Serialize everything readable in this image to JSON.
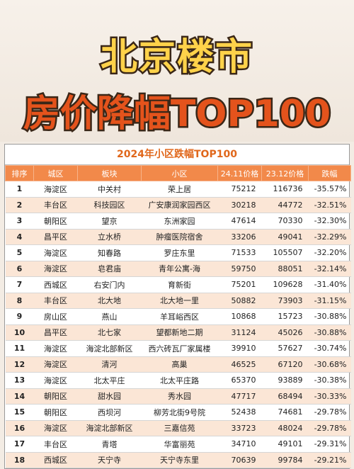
{
  "hero": {
    "title_line1": "北京楼市",
    "title_line2": "房价降幅TOP100"
  },
  "table": {
    "caption": "2024年小区跌幅TOP100",
    "headers": [
      "排序",
      "城区",
      "板块",
      "小区",
      "24.11价格",
      "23.12价格",
      "跌幅"
    ],
    "rows": [
      [
        "1",
        "海淀区",
        "中关村",
        "荣上居",
        "75212",
        "116736",
        "-35.57%"
      ],
      [
        "2",
        "丰台区",
        "科技园区",
        "广安康润家园西区",
        "30218",
        "44772",
        "-32.51%"
      ],
      [
        "3",
        "朝阳区",
        "望京",
        "东洲家园",
        "47614",
        "70330",
        "-32.30%"
      ],
      [
        "4",
        "昌平区",
        "立水桥",
        "肿瘤医院宿舍",
        "33206",
        "49041",
        "-32.29%"
      ],
      [
        "5",
        "海淀区",
        "知春路",
        "罗庄东里",
        "71533",
        "105507",
        "-32.20%"
      ],
      [
        "6",
        "海淀区",
        "皂君庙",
        "青年公寓-海",
        "59750",
        "88051",
        "-32.14%"
      ],
      [
        "7",
        "西城区",
        "右安门内",
        "育新街",
        "75201",
        "109628",
        "-31.40%"
      ],
      [
        "8",
        "丰台区",
        "北大地",
        "北大地一里",
        "50882",
        "73903",
        "-31.15%"
      ],
      [
        "9",
        "房山区",
        "燕山",
        "羊耳峪西区",
        "10868",
        "15723",
        "-30.88%"
      ],
      [
        "10",
        "昌平区",
        "北七家",
        "望都新地二期",
        "31124",
        "45026",
        "-30.88%"
      ],
      [
        "11",
        "海淀区",
        "海淀北部新区",
        "西六砖瓦厂家属楼",
        "39910",
        "57627",
        "-30.74%"
      ],
      [
        "12",
        "海淀区",
        "清河",
        "高巢",
        "46525",
        "67120",
        "-30.68%"
      ],
      [
        "13",
        "海淀区",
        "北太平庄",
        "北太平庄路",
        "65370",
        "93889",
        "-30.38%"
      ],
      [
        "14",
        "朝阳区",
        "甜水园",
        "秀水园",
        "47717",
        "68494",
        "-30.33%"
      ],
      [
        "15",
        "朝阳区",
        "西坝河",
        "柳芳北街9号院",
        "52438",
        "74681",
        "-29.78%"
      ],
      [
        "16",
        "海淀区",
        "海淀北部新区",
        "三嘉信苑",
        "33723",
        "48024",
        "-29.78%"
      ],
      [
        "17",
        "丰台区",
        "青塔",
        "华富丽苑",
        "34710",
        "49101",
        "-29.31%"
      ],
      [
        "18",
        "西城区",
        "天宁寺",
        "天宁寺东里",
        "70639",
        "99784",
        "-29.21%"
      ]
    ]
  }
}
